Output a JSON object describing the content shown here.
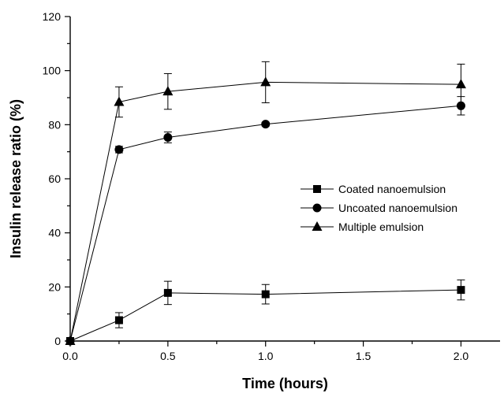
{
  "chart_data": {
    "type": "line",
    "title": "",
    "xlabel": "Time (hours)",
    "ylabel": "Insulin release ratio (%)",
    "xlim": [
      0,
      2.2
    ],
    "ylim": [
      0,
      120
    ],
    "x_ticks": [
      0.0,
      0.5,
      1.0,
      1.5,
      2.0
    ],
    "x_tick_labels": [
      "0.0",
      "0.5",
      "1.0",
      "1.5",
      "2.0"
    ],
    "y_ticks": [
      0,
      20,
      40,
      60,
      80,
      100,
      120
    ],
    "y_tick_labels": [
      "0",
      "20",
      "40",
      "60",
      "80",
      "100",
      "120"
    ],
    "grid": false,
    "legend_position": "center-right",
    "x": [
      0,
      0.25,
      0.5,
      1.0,
      2.0
    ],
    "series": [
      {
        "name": "Coated nanoemulsion",
        "marker": "square",
        "values": [
          0,
          7.7,
          17.8,
          17.3,
          18.9
        ],
        "errors": [
          0,
          2.8,
          4.3,
          3.6,
          3.7
        ]
      },
      {
        "name": "Uncoated nanoemulsion",
        "marker": "circle",
        "values": [
          0,
          70.8,
          75.3,
          80.2,
          87.0
        ],
        "errors": [
          0,
          1.2,
          2.0,
          0.7,
          3.4
        ]
      },
      {
        "name": "Multiple emulsion",
        "marker": "triangle",
        "values": [
          0,
          88.4,
          92.3,
          95.7,
          94.9
        ],
        "errors": [
          0,
          5.6,
          6.6,
          7.6,
          7.5
        ]
      }
    ]
  }
}
